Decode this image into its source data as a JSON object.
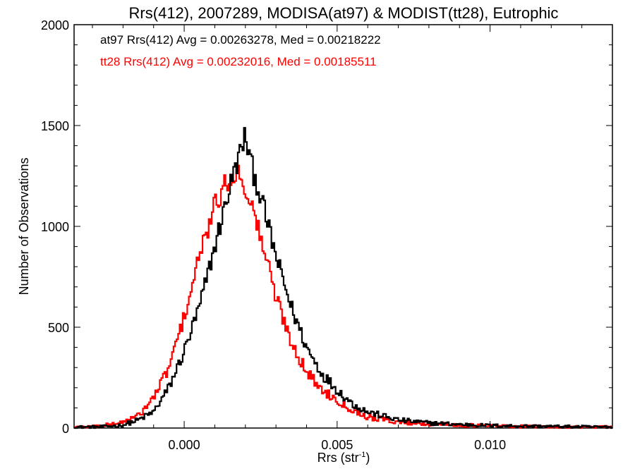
{
  "chart_data": {
    "type": "histogram-step",
    "title": "Rrs(412), 2007289, MODISA(at97) & MODIST(tt28), Eutrophic",
    "xlabel": "Rrs (str",
    "xlabel_sup": "-1",
    "xlabel_close": ")",
    "ylabel": "Number of Observations",
    "xlim": [
      -0.0036,
      0.014
    ],
    "ylim": [
      0,
      2000
    ],
    "x_ticks": [
      0.0,
      0.005,
      0.01
    ],
    "x_tick_labels": [
      "0.000",
      "0.005",
      "0.010"
    ],
    "y_ticks": [
      0,
      500,
      1000,
      1500,
      2000
    ],
    "y_tick_labels": [
      "0",
      "500",
      "1000",
      "1500",
      "2000"
    ],
    "grid": false,
    "series": [
      {
        "name": "at97",
        "color": "#000000",
        "annotation": "at97 Rrs(412) Avg = 0.00263278, Med = 0.00218222",
        "x": [
          -0.0036,
          -0.003,
          -0.0025,
          -0.002,
          -0.0015,
          -0.001,
          -0.0005,
          0.0,
          0.0005,
          0.001,
          0.0015,
          0.0018,
          0.002,
          0.0022,
          0.0025,
          0.003,
          0.0035,
          0.004,
          0.0045,
          0.005,
          0.0055,
          0.006,
          0.007,
          0.008,
          0.009,
          0.01,
          0.011,
          0.012,
          0.013,
          0.014
        ],
        "y": [
          5,
          5,
          8,
          15,
          40,
          80,
          200,
          380,
          600,
          900,
          1200,
          1350,
          1450,
          1300,
          1150,
          850,
          600,
          400,
          270,
          190,
          120,
          80,
          40,
          25,
          18,
          12,
          10,
          8,
          6,
          5
        ]
      },
      {
        "name": "tt28",
        "color": "#ff0000",
        "annotation": "tt28 Rrs(412) Avg = 0.00232016, Med = 0.00185511",
        "x": [
          -0.0036,
          -0.003,
          -0.0025,
          -0.002,
          -0.0015,
          -0.001,
          -0.0005,
          0.0,
          0.0005,
          0.001,
          0.0015,
          0.0018,
          0.002,
          0.0022,
          0.0025,
          0.003,
          0.0035,
          0.004,
          0.0045,
          0.005,
          0.0055,
          0.006,
          0.007,
          0.008,
          0.009,
          0.01,
          0.011,
          0.012,
          0.013,
          0.014
        ],
        "y": [
          5,
          8,
          15,
          30,
          60,
          150,
          300,
          550,
          850,
          1100,
          1250,
          1260,
          1200,
          1100,
          950,
          650,
          430,
          280,
          190,
          140,
          90,
          55,
          30,
          20,
          15,
          10,
          8,
          6,
          5,
          5
        ]
      }
    ]
  }
}
